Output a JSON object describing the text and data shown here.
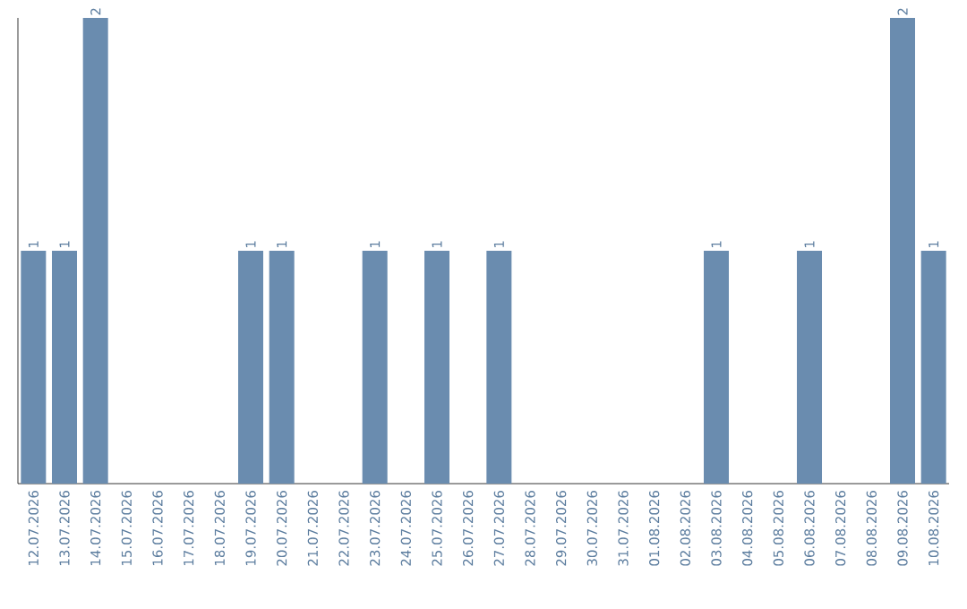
{
  "chart_data": {
    "type": "bar",
    "categories": [
      "12.07.2026",
      "13.07.2026",
      "14.07.2026",
      "15.07.2026",
      "16.07.2026",
      "17.07.2026",
      "18.07.2026",
      "19.07.2026",
      "20.07.2026",
      "21.07.2026",
      "22.07.2026",
      "23.07.2026",
      "24.07.2026",
      "25.07.2026",
      "26.07.2026",
      "27.07.2026",
      "28.07.2026",
      "29.07.2026",
      "30.07.2026",
      "31.07.2026",
      "01.08.2026",
      "02.08.2026",
      "03.08.2026",
      "04.08.2026",
      "05.08.2026",
      "06.08.2026",
      "07.08.2026",
      "08.08.2026",
      "09.08.2026",
      "10.08.2026"
    ],
    "values": [
      1,
      1,
      2,
      0,
      0,
      0,
      0,
      1,
      1,
      0,
      0,
      1,
      0,
      1,
      0,
      1,
      0,
      0,
      0,
      0,
      0,
      0,
      1,
      0,
      0,
      1,
      0,
      0,
      2,
      1
    ],
    "value_labels": [
      "1",
      "1",
      "2",
      null,
      null,
      null,
      null,
      "1",
      "1",
      null,
      null,
      "1",
      null,
      "1",
      null,
      "1",
      null,
      null,
      null,
      null,
      null,
      null,
      "1",
      null,
      null,
      "1",
      null,
      null,
      "2",
      "1"
    ],
    "color": "#6a8caf",
    "ylim": [
      0,
      2
    ],
    "tick_labels": "x"
  }
}
